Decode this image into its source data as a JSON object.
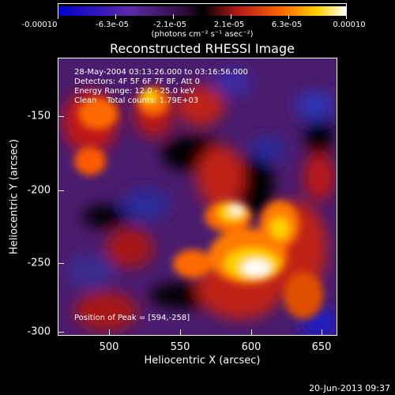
{
  "colorbar": {
    "tick_labels": [
      "-0.00010",
      "-6.3e-05",
      "-2.1e-05",
      "2.1e-05",
      "6.3e-05",
      "0.00010"
    ],
    "units": "(photons cm⁻² s⁻¹ asec⁻²)",
    "colors": [
      "#0000cc",
      "#5a2aa8",
      "#6a1a8a",
      "#000000",
      "#b01818",
      "#ff6a00",
      "#ffd200",
      "#ffffff"
    ]
  },
  "title": "Reconstructed RHESSI Image",
  "info": {
    "time_range": "28-May-2004 03:13:26.000 to 03:16:56.000",
    "detectors": "Detectors: 4F 5F 6F 7F 8F, Att 0",
    "energy": "Energy Range: 12.0 - 25.0 keV",
    "clean": "Clean    Total counts: 1.79E+03"
  },
  "peak_label": "Position of Peak = [594,-258]",
  "axes": {
    "xlabel": "Heliocentric X (arcsec)",
    "ylabel": "Heliocentric Y (arcsec)",
    "x_ticks": [
      "500",
      "550",
      "600",
      "650"
    ],
    "y_ticks": [
      "-150",
      "-200",
      "-250",
      "-300"
    ]
  },
  "footer_date": "20-Jun-2013 09:37"
}
